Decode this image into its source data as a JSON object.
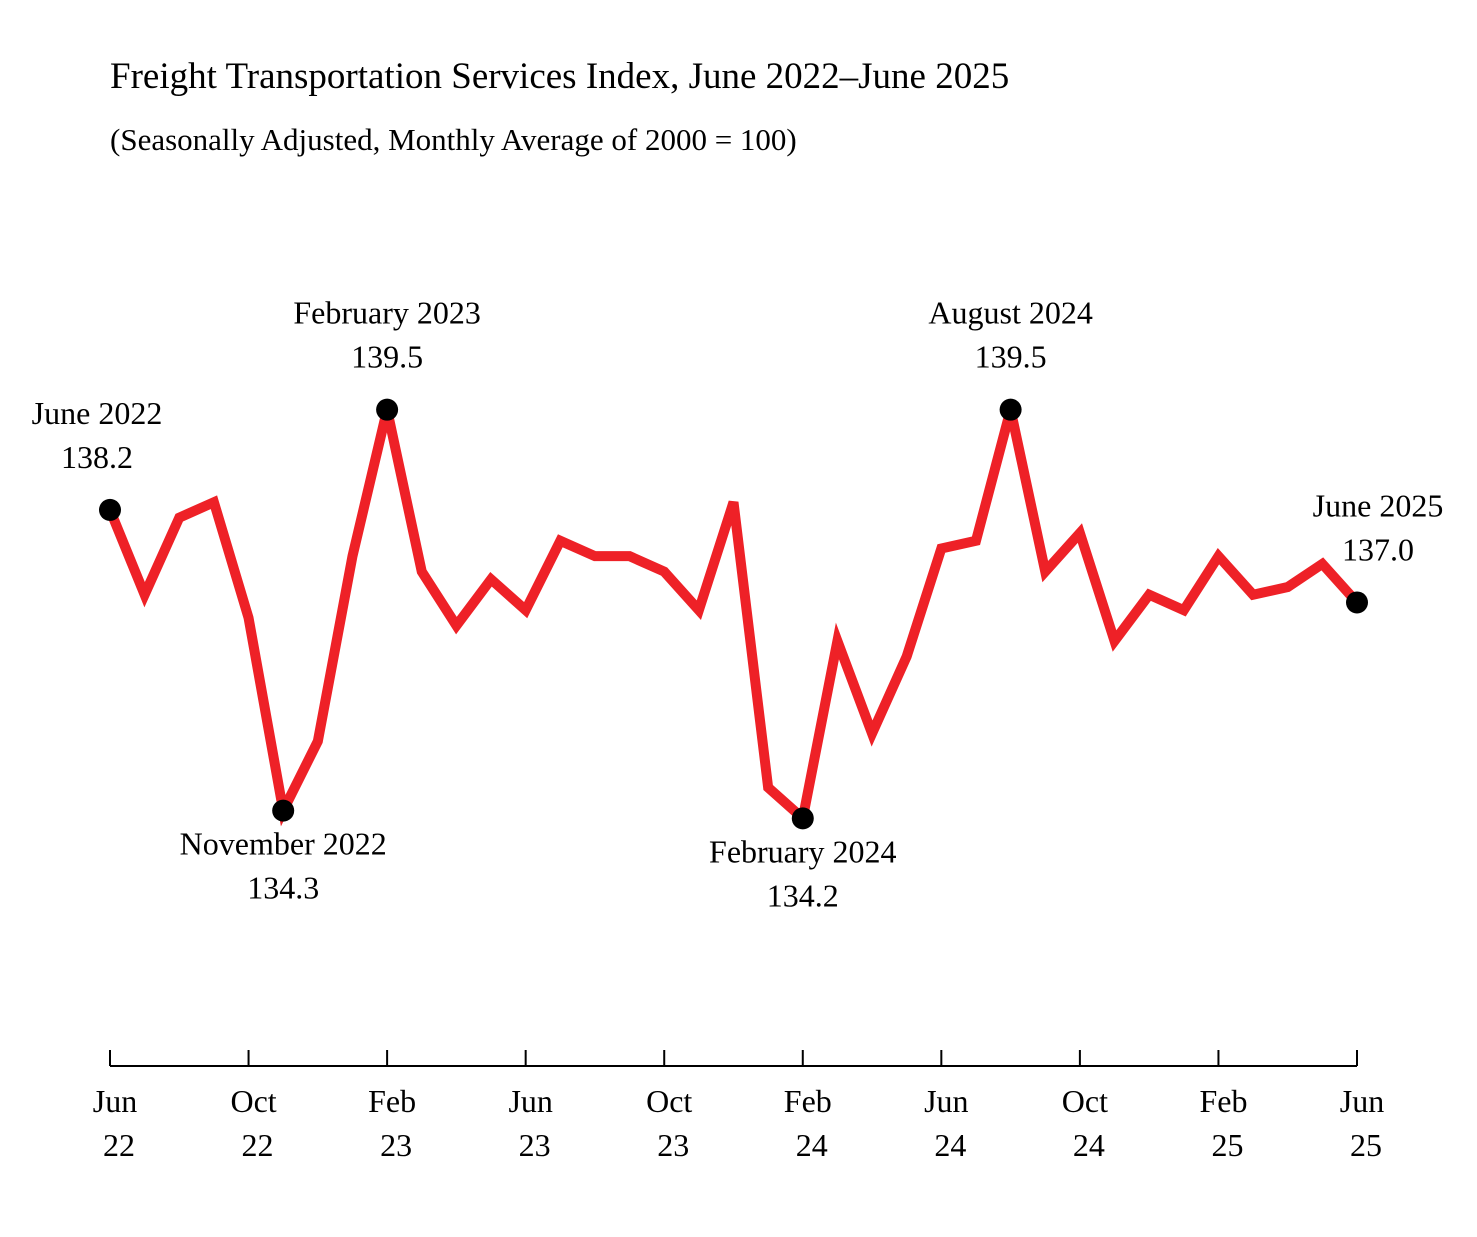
{
  "chart_data": {
    "type": "line",
    "title": "Freight Transportation Services Index, June 2022–June 2025",
    "subtitle": "(Seasonally Adjusted, Monthly Average of 2000 = 100)",
    "categories": [
      "Jun 22",
      null,
      null,
      null,
      "Oct 22",
      null,
      null,
      null,
      "Feb 23",
      null,
      null,
      null,
      "Jun 23",
      null,
      null,
      null,
      "Oct 23",
      null,
      null,
      null,
      "Feb 24",
      null,
      null,
      null,
      "Jun 24",
      null,
      null,
      null,
      "Oct 24",
      null,
      null,
      null,
      "Feb 25",
      null,
      null,
      null,
      "Jun 25"
    ],
    "values": [
      138.2,
      137.1,
      138.1,
      138.3,
      136.8,
      134.3,
      135.2,
      137.6,
      139.5,
      137.4,
      136.7,
      137.3,
      136.9,
      137.8,
      137.6,
      137.6,
      137.4,
      136.9,
      138.3,
      134.6,
      134.2,
      136.5,
      135.3,
      136.3,
      137.7,
      137.8,
      139.5,
      137.4,
      137.9,
      136.5,
      137.1,
      136.9,
      137.6,
      137.1,
      137.2,
      137.5,
      137.0
    ],
    "point_labels": [
      "June 2022",
      null,
      null,
      null,
      null,
      "November 2022",
      null,
      null,
      "February 2023",
      null,
      null,
      null,
      null,
      null,
      null,
      null,
      null,
      null,
      null,
      null,
      "February 2024",
      null,
      null,
      null,
      null,
      null,
      "August 2024",
      null,
      null,
      null,
      null,
      null,
      null,
      null,
      null,
      null,
      "June 2025"
    ],
    "value_labels": [
      "138.2",
      null,
      null,
      null,
      null,
      "134.3",
      null,
      null,
      "139.5",
      null,
      null,
      null,
      null,
      null,
      null,
      null,
      null,
      null,
      null,
      null,
      "134.2",
      null,
      null,
      null,
      null,
      null,
      "139.5",
      null,
      null,
      null,
      null,
      null,
      null,
      null,
      null,
      null,
      "137.0"
    ],
    "color": "#ee2127",
    "ylim": [
      132,
      141
    ]
  }
}
